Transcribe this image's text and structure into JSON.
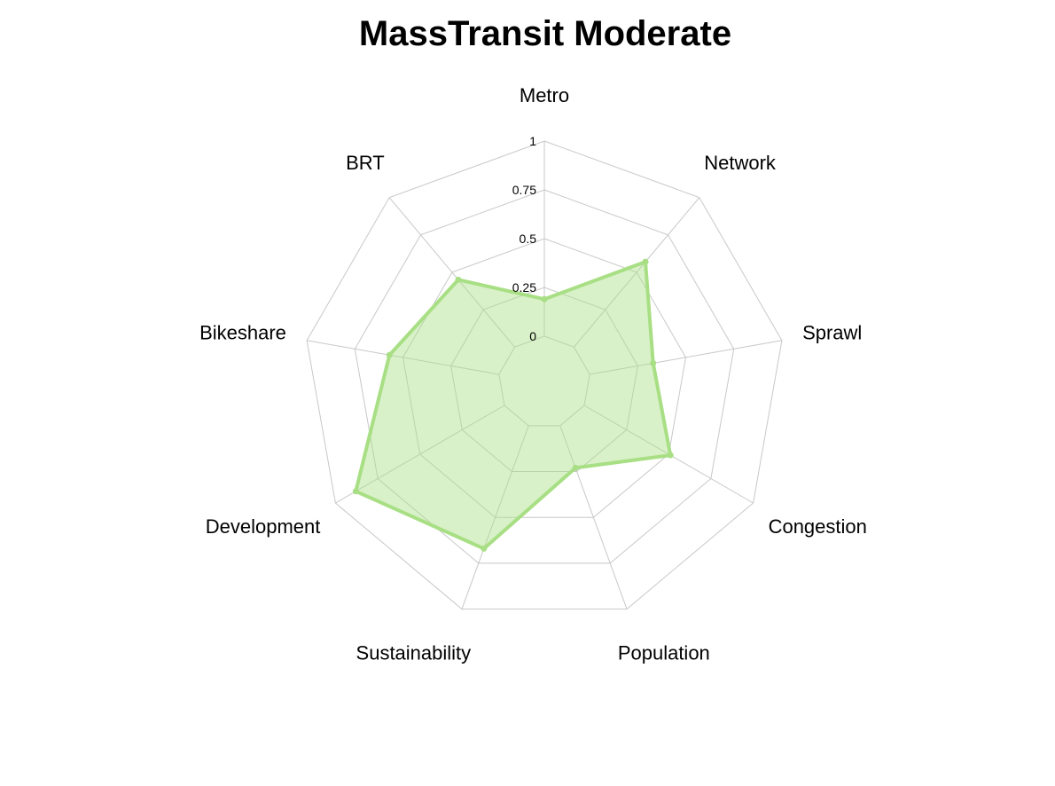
{
  "chart_data": {
    "type": "radar",
    "title": "MassTransit Moderate",
    "categories": [
      "Metro",
      "Network",
      "Sprawl",
      "Congestion",
      "Population",
      "Sustainability",
      "Development",
      "Bikeshare",
      "BRT"
    ],
    "series": [
      {
        "values": [
          0.19,
          0.57,
          0.33,
          0.51,
          0.23,
          0.67,
          0.88,
          0.57,
          0.45
        ]
      }
    ],
    "rlim": [
      0,
      1
    ],
    "rticks": [
      0,
      0.25,
      0.5,
      0.75,
      1
    ],
    "rtick_labels": [
      "0",
      "0.25",
      "0.5",
      "0.75",
      "1"
    ],
    "colors": {
      "line": "#a8df84",
      "fill": "#a8df84",
      "grid": "#c8c8c8"
    }
  }
}
